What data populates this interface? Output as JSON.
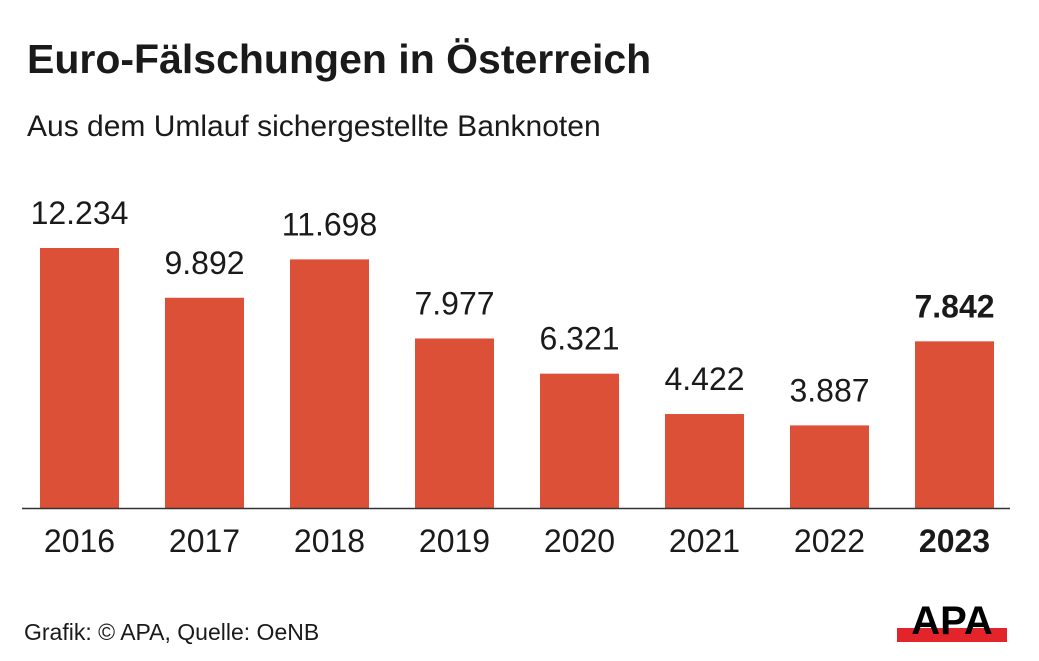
{
  "header": {
    "title": "Euro-Fälschungen in Österreich",
    "subtitle": "Aus dem Umlauf sichergestellte Banknoten"
  },
  "footer": {
    "credit": "Grafik: © APA, Quelle: OeNB",
    "logo_text": "APA"
  },
  "colors": {
    "bar": "#dd5038",
    "text": "#1a1a1a",
    "axis": "#333333",
    "logo_red": "#e3242b",
    "logo_black": "#000000"
  },
  "chart_data": {
    "type": "bar",
    "title": "Euro-Fälschungen in Österreich",
    "subtitle": "Aus dem Umlauf sichergestellte Banknoten",
    "xlabel": "",
    "ylabel": "",
    "categories": [
      "2016",
      "2017",
      "2018",
      "2019",
      "2020",
      "2021",
      "2022",
      "2023"
    ],
    "values": [
      12234,
      9892,
      11698,
      7977,
      6321,
      4422,
      3887,
      7842
    ],
    "value_labels": [
      "12.234",
      "9.892",
      "11.698",
      "7.977",
      "6.321",
      "4.422",
      "3.887",
      "7.842"
    ],
    "highlight_index": 7,
    "ylim": [
      0,
      12234
    ],
    "grid": false,
    "legend": "none",
    "source": "Grafik: © APA, Quelle: OeNB"
  }
}
